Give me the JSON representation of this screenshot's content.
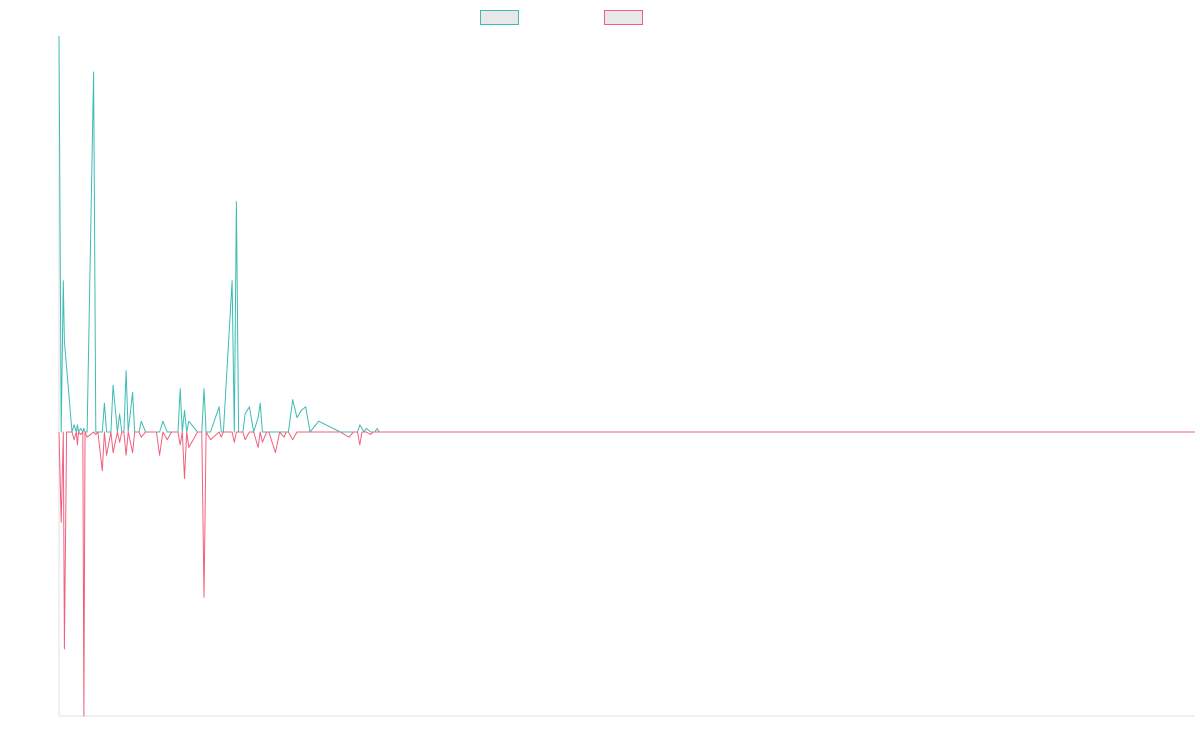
{
  "chart_data": {
    "type": "line",
    "title": "",
    "xlabel": "",
    "ylabel": "",
    "legend": {
      "placement": "top-center"
    },
    "grid": false,
    "ylim": [
      -1,
      1.2
    ],
    "series": [
      {
        "color": "#3cbcb4",
        "fill": "#e8e8e8",
        "x": [
          0,
          2,
          4,
          5,
          7,
          12,
          14,
          16,
          17,
          18,
          20,
          22,
          23,
          24,
          26,
          32,
          34,
          36,
          40,
          42,
          44,
          48,
          50,
          54,
          56,
          58,
          60,
          62,
          64,
          68,
          70,
          74,
          76,
          80,
          82,
          90,
          93,
          96,
          100,
          104,
          110,
          112,
          114,
          116,
          118,
          120,
          128,
          132,
          134,
          136,
          140,
          148,
          150,
          152,
          160,
          162,
          164,
          166,
          170,
          172,
          176,
          180,
          184,
          186,
          188,
          192,
          194,
          200,
          204,
          208,
          210,
          212,
          216,
          220,
          224,
          228,
          232,
          240,
          260,
          268,
          272,
          276,
          278,
          280,
          282,
          284,
          288,
          290,
          292,
          294,
          296,
          298,
          300,
          306,
          312,
          318,
          320,
          322,
          330,
          334,
          336,
          338,
          340,
          342,
          344,
          346,
          350,
          352,
          360,
          1050
        ],
        "values": [
          1.1,
          0.0,
          0.42,
          0.25,
          0.18,
          0.0,
          0.02,
          0.0,
          0.02,
          0.0,
          0.01,
          0.0,
          0.01,
          0.0,
          0.0,
          1.0,
          0.0,
          0.0,
          0.0,
          0.08,
          0.0,
          0.0,
          0.13,
          0.0,
          0.05,
          0.0,
          0.0,
          0.17,
          0.0,
          0.11,
          0.0,
          0.0,
          0.03,
          0.0,
          0.0,
          0.0,
          0.0,
          0.03,
          0.0,
          0.0,
          0.0,
          0.12,
          0.0,
          0.06,
          0.0,
          0.03,
          0.0,
          0.0,
          0.12,
          0.0,
          0.0,
          0.07,
          0.0,
          0.0,
          0.42,
          0.0,
          0.64,
          0.0,
          0.0,
          0.05,
          0.07,
          0.0,
          0.04,
          0.08,
          0.0,
          0.0,
          0.0,
          0.0,
          0.0,
          0.0,
          0.0,
          0.0,
          0.09,
          0.04,
          0.06,
          0.07,
          0.0,
          0.03,
          0.0,
          0.0,
          0.0,
          0.0,
          0.02,
          0.01,
          0.0,
          0.01,
          0.0,
          0.0,
          0.0,
          0.01,
          0.0,
          0.0,
          0.0,
          0.0,
          0.0,
          0.0,
          0.0,
          0.0,
          0.0,
          0.0,
          0.0,
          0.0,
          0.0,
          0.0,
          0.0,
          0.0,
          0.0,
          0.0,
          0.0,
          0.0
        ]
      },
      {
        "color": "#f0607e",
        "fill": "#e8e8e8",
        "x": [
          0,
          2,
          4,
          5,
          7,
          12,
          14,
          16,
          17,
          18,
          20,
          22,
          23,
          24,
          26,
          32,
          34,
          36,
          40,
          42,
          44,
          48,
          50,
          54,
          56,
          58,
          60,
          62,
          64,
          68,
          70,
          74,
          76,
          80,
          82,
          90,
          93,
          96,
          100,
          104,
          110,
          112,
          114,
          116,
          118,
          120,
          128,
          132,
          134,
          136,
          140,
          148,
          150,
          152,
          160,
          162,
          164,
          166,
          170,
          172,
          176,
          180,
          184,
          186,
          188,
          192,
          194,
          200,
          204,
          208,
          210,
          212,
          216,
          220,
          224,
          228,
          232,
          240,
          260,
          268,
          272,
          276,
          278,
          280,
          282,
          284,
          288,
          290,
          292,
          294,
          296,
          298,
          300,
          306,
          312,
          318,
          320,
          322,
          330,
          334,
          336,
          338,
          340,
          342,
          344,
          346,
          350,
          352,
          360,
          1050
        ],
        "values": [
          0.0,
          -0.35,
          0.0,
          -0.84,
          0.0,
          0.0,
          -0.03,
          0.0,
          -0.05,
          0.0,
          -0.01,
          0.0,
          -1.1,
          0.0,
          -0.02,
          0.0,
          -0.01,
          0.0,
          -0.15,
          0.0,
          -0.09,
          0.0,
          -0.08,
          0.0,
          -0.04,
          0.0,
          0.0,
          -0.09,
          0.0,
          -0.08,
          0.0,
          0.0,
          -0.02,
          0.0,
          0.0,
          0.0,
          -0.09,
          0.0,
          -0.03,
          0.0,
          0.0,
          -0.05,
          0.0,
          -0.18,
          0.0,
          -0.06,
          0.0,
          0.0,
          -0.64,
          0.0,
          -0.03,
          0.0,
          -0.02,
          0.0,
          0.0,
          -0.04,
          0.0,
          0.0,
          0.0,
          -0.03,
          0.0,
          0.0,
          -0.06,
          0.0,
          -0.04,
          0.0,
          0.0,
          -0.08,
          0.0,
          -0.02,
          0.0,
          0.0,
          -0.03,
          0.0,
          0.0,
          0.0,
          0.0,
          0.0,
          0.0,
          -0.02,
          0.0,
          0.0,
          -0.05,
          0.0,
          0.0,
          0.0,
          -0.01,
          0.0,
          0.0,
          0.0,
          0.0,
          0.0,
          0.0,
          0.0,
          0.0,
          0.0,
          0.0,
          0.0,
          0.0,
          0.0,
          0.0,
          0.0,
          0.0,
          0.0,
          0.0,
          0.0,
          0.0,
          0.0,
          0.0,
          0.0
        ]
      }
    ]
  }
}
